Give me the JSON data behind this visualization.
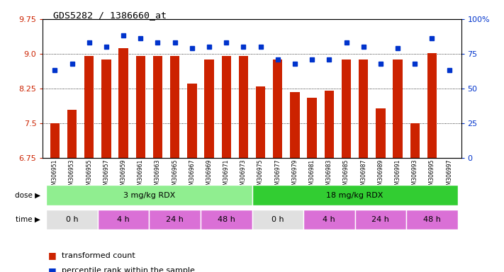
{
  "title": "GDS5282 / 1386660_at",
  "samples": [
    "GSM306951",
    "GSM306953",
    "GSM306955",
    "GSM306957",
    "GSM306959",
    "GSM306961",
    "GSM306963",
    "GSM306965",
    "GSM306967",
    "GSM306969",
    "GSM306971",
    "GSM306973",
    "GSM306975",
    "GSM306977",
    "GSM306979",
    "GSM306981",
    "GSM306983",
    "GSM306985",
    "GSM306987",
    "GSM306989",
    "GSM306991",
    "GSM306993",
    "GSM306995",
    "GSM306997"
  ],
  "bar_values": [
    7.5,
    7.78,
    8.95,
    8.87,
    9.12,
    8.95,
    8.95,
    8.95,
    8.35,
    8.87,
    8.95,
    8.95,
    8.3,
    8.87,
    8.17,
    8.05,
    8.2,
    8.87,
    8.87,
    7.82,
    8.87,
    7.5,
    9.02,
    6.75
  ],
  "dot_percentiles": [
    63,
    68,
    83,
    80,
    88,
    86,
    83,
    83,
    79,
    80,
    83,
    80,
    80,
    71,
    68,
    71,
    71,
    83,
    80,
    68,
    79,
    68,
    86,
    63
  ],
  "ylim": [
    6.75,
    9.75
  ],
  "yticks_left": [
    6.75,
    7.5,
    8.25,
    9.0,
    9.75
  ],
  "yticks_right": [
    0,
    25,
    50,
    75,
    100
  ],
  "bar_color": "#cc2200",
  "dot_color": "#0033cc",
  "background_color": "#ffffff",
  "xtick_bg": "#d3d3d3",
  "dose_segments": [
    {
      "label": "3 mg/kg RDX",
      "start": 0,
      "end": 12,
      "color": "#90ee90"
    },
    {
      "label": "18 mg/kg RDX",
      "start": 12,
      "end": 24,
      "color": "#32cd32"
    }
  ],
  "time_segments": [
    {
      "label": "0 h",
      "start": 0,
      "end": 3,
      "color": "#e0e0e0"
    },
    {
      "label": "4 h",
      "start": 3,
      "end": 6,
      "color": "#da70d6"
    },
    {
      "label": "24 h",
      "start": 6,
      "end": 9,
      "color": "#da70d6"
    },
    {
      "label": "48 h",
      "start": 9,
      "end": 12,
      "color": "#da70d6"
    },
    {
      "label": "0 h",
      "start": 12,
      "end": 15,
      "color": "#e0e0e0"
    },
    {
      "label": "4 h",
      "start": 15,
      "end": 18,
      "color": "#da70d6"
    },
    {
      "label": "24 h",
      "start": 18,
      "end": 21,
      "color": "#da70d6"
    },
    {
      "label": "48 h",
      "start": 21,
      "end": 24,
      "color": "#da70d6"
    }
  ],
  "legend": [
    {
      "label": "transformed count",
      "color": "#cc2200"
    },
    {
      "label": "percentile rank within the sample",
      "color": "#0033cc"
    }
  ]
}
